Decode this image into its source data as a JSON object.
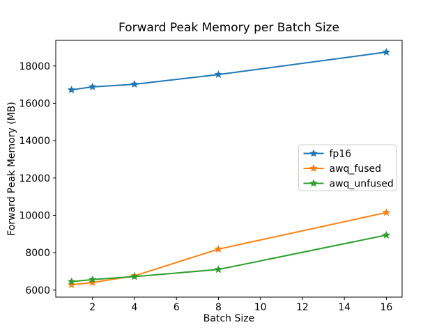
{
  "chart_data": {
    "type": "line",
    "title": "Forward Peak Memory per Batch Size",
    "xlabel": "Batch Size",
    "ylabel": "Forward Peak Memory (MB)",
    "x": [
      1,
      2,
      4,
      8,
      16
    ],
    "series": [
      {
        "name": "fp16",
        "color": "#1f77b4",
        "values": [
          16720,
          16880,
          17020,
          17540,
          18740
        ]
      },
      {
        "name": "awq_fused",
        "color": "#ff7f0e",
        "values": [
          6280,
          6400,
          6760,
          8190,
          10150
        ]
      },
      {
        "name": "awq_unfused",
        "color": "#2ca02c",
        "values": [
          6450,
          6560,
          6720,
          7100,
          8940
        ]
      }
    ],
    "xticks": [
      2,
      4,
      6,
      8,
      10,
      12,
      14,
      16
    ],
    "yticks": [
      6000,
      8000,
      10000,
      12000,
      14000,
      16000,
      18000
    ],
    "xlim": [
      0.25,
      16.75
    ],
    "ylim": [
      5620,
      19370
    ],
    "grid": false,
    "legend_position": "center right",
    "marker": "star",
    "background_color": "#ffffff",
    "spine_color": "#000000",
    "legend_border_color": "#cccccc"
  }
}
